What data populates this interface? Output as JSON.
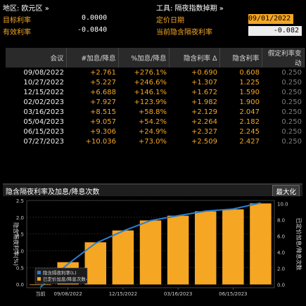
{
  "header": {
    "region_label": "地区: 欧元区 »",
    "target_rate_label": "目标利率",
    "target_rate_value": "0.0000",
    "effective_rate_label": "有效利率",
    "effective_rate_value": "-0.0840",
    "instrument_label": "工具: 隔夜指数掉期 »",
    "pricing_date_label": "定价日期",
    "pricing_date_value": "09/01/2022",
    "implied_overnight_label": "当前隐含隔夜利率",
    "implied_overnight_value": "-0.082"
  },
  "table": {
    "columns": [
      "会议",
      "#加息/降息",
      "%加息/降息",
      "隐含利率 Δ",
      "隐含利率",
      "假定利率变动"
    ],
    "rows": [
      [
        "09/08/2022",
        "+2.761",
        "+276.1%",
        "+0.690",
        "0.608",
        "0.250"
      ],
      [
        "10/27/2022",
        "+5.227",
        "+246.6%",
        "+1.307",
        "1.225",
        "0.250"
      ],
      [
        "12/15/2022",
        "+6.688",
        "+146.1%",
        "+1.672",
        "1.590",
        "0.250"
      ],
      [
        "02/02/2023",
        "+7.927",
        "+123.9%",
        "+1.982",
        "1.900",
        "0.250"
      ],
      [
        "03/16/2023",
        "+8.515",
        "+58.8%",
        "+2.129",
        "2.047",
        "0.250"
      ],
      [
        "05/04/2023",
        "+9.057",
        "+54.2%",
        "+2.264",
        "2.182",
        "0.250"
      ],
      [
        "06/15/2023",
        "+9.306",
        "+24.9%",
        "+2.327",
        "2.245",
        "0.250"
      ],
      [
        "07/27/2023",
        "+10.036",
        "+73.0%",
        "+2.509",
        "2.427",
        "0.250"
      ]
    ]
  },
  "chart_panel": {
    "title": "隐含隔夜利率及加息/降息次数",
    "maximize_label": "最大化"
  },
  "chart_data": {
    "type": "bar",
    "x_tick_labels": [
      "当前",
      "09/08/2022",
      "12/15/2022",
      "03/16/2023",
      "06/15/2023"
    ],
    "categories": [
      "当前",
      "09/08/2022",
      "10/27/2022",
      "12/15/2022",
      "02/02/2023",
      "03/16/2023",
      "05/04/2023",
      "06/15/2023",
      "07/27/2023"
    ],
    "series": [
      {
        "name": "隐含隔夜利率(L)",
        "type": "line",
        "axis": "left",
        "color": "#2a7fd4",
        "values": [
          -0.082,
          0.608,
          1.225,
          1.59,
          1.9,
          2.047,
          2.182,
          2.245,
          2.427
        ]
      },
      {
        "name": "已定价加息/降息次数-",
        "type": "bar",
        "axis": "right",
        "color": "#f5a623",
        "values": [
          0,
          2.761,
          5.227,
          6.688,
          7.927,
          8.515,
          9.057,
          9.306,
          10.036
        ]
      }
    ],
    "ylabel_left": "隐含隔夜利率(%)",
    "ylabel_right": "已定价加息/降息次数",
    "ylim_left": [
      -0.1,
      2.5
    ],
    "yticks_left": [
      "2.5",
      "2.0",
      "1.5",
      "1.0",
      "0.5",
      "0.0"
    ],
    "ylim_right": [
      -0.4,
      10.4
    ],
    "yticks_right": [
      "10.0",
      "8.0",
      "6.0",
      "4.0",
      "2.0",
      "0.0"
    ],
    "legend_position": "bottom-left",
    "grid": true
  }
}
